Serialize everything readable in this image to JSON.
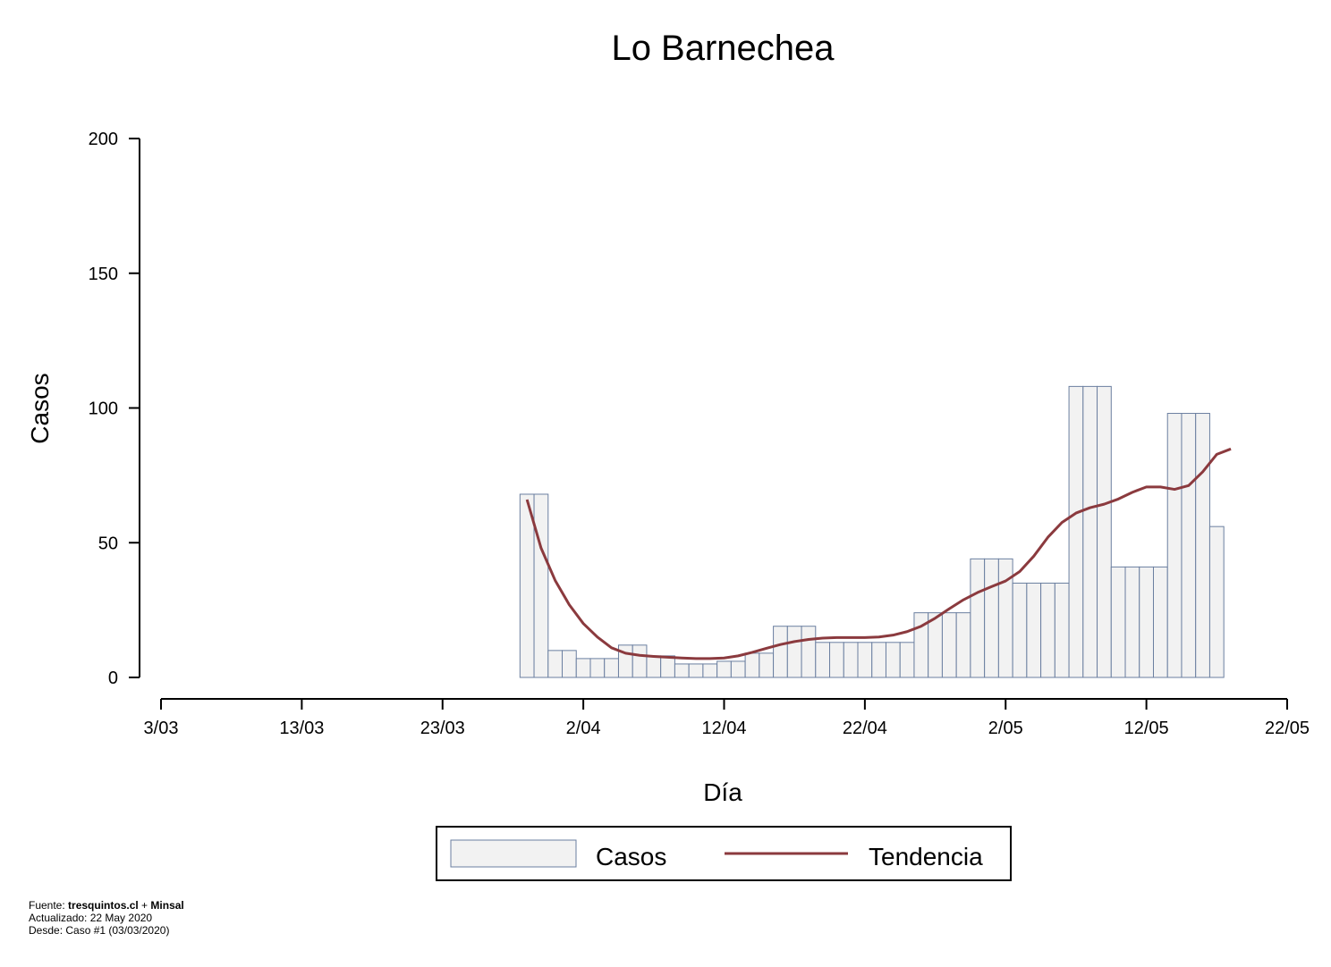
{
  "chart_data": {
    "type": "bar",
    "title": "Lo Barnechea",
    "xlabel": "Día",
    "ylabel": "Casos",
    "ylim": [
      0,
      200
    ],
    "y_ticks": [
      0,
      50,
      100,
      150,
      200
    ],
    "x_ticks": [
      "3/03",
      "13/03",
      "23/03",
      "2/04",
      "12/04",
      "22/04",
      "2/05",
      "12/05",
      "22/05"
    ],
    "x_range_days": [
      0,
      80
    ],
    "grid": false,
    "legend_position": "bottom",
    "series": [
      {
        "name": "Casos",
        "kind": "bar",
        "color": "#f2f2f2",
        "edge_color": "#6b7fa0",
        "points": [
          {
            "x": "29/03",
            "y": 68
          },
          {
            "x": "30/03",
            "y": 68
          },
          {
            "x": "31/03",
            "y": 10
          },
          {
            "x": "1/04",
            "y": 10
          },
          {
            "x": "2/04",
            "y": 7
          },
          {
            "x": "3/04",
            "y": 7
          },
          {
            "x": "4/04",
            "y": 7
          },
          {
            "x": "5/04",
            "y": 12
          },
          {
            "x": "6/04",
            "y": 12
          },
          {
            "x": "7/04",
            "y": 8
          },
          {
            "x": "8/04",
            "y": 8
          },
          {
            "x": "9/04",
            "y": 5
          },
          {
            "x": "10/04",
            "y": 5
          },
          {
            "x": "11/04",
            "y": 5
          },
          {
            "x": "12/04",
            "y": 6
          },
          {
            "x": "13/04",
            "y": 6
          },
          {
            "x": "14/04",
            "y": 9
          },
          {
            "x": "15/04",
            "y": 9
          },
          {
            "x": "16/04",
            "y": 19
          },
          {
            "x": "17/04",
            "y": 19
          },
          {
            "x": "18/04",
            "y": 19
          },
          {
            "x": "19/04",
            "y": 13
          },
          {
            "x": "20/04",
            "y": 13
          },
          {
            "x": "21/04",
            "y": 13
          },
          {
            "x": "22/04",
            "y": 13
          },
          {
            "x": "23/04",
            "y": 13
          },
          {
            "x": "24/04",
            "y": 13
          },
          {
            "x": "25/04",
            "y": 13
          },
          {
            "x": "26/04",
            "y": 24
          },
          {
            "x": "27/04",
            "y": 24
          },
          {
            "x": "28/04",
            "y": 24
          },
          {
            "x": "29/04",
            "y": 24
          },
          {
            "x": "30/04",
            "y": 44
          },
          {
            "x": "1/05",
            "y": 44
          },
          {
            "x": "2/05",
            "y": 44
          },
          {
            "x": "3/05",
            "y": 35
          },
          {
            "x": "4/05",
            "y": 35
          },
          {
            "x": "5/05",
            "y": 35
          },
          {
            "x": "6/05",
            "y": 35
          },
          {
            "x": "7/05",
            "y": 108
          },
          {
            "x": "8/05",
            "y": 108
          },
          {
            "x": "9/05",
            "y": 108
          },
          {
            "x": "10/05",
            "y": 41
          },
          {
            "x": "11/05",
            "y": 41
          },
          {
            "x": "12/05",
            "y": 41
          },
          {
            "x": "13/05",
            "y": 41
          },
          {
            "x": "14/05",
            "y": 98
          },
          {
            "x": "15/05",
            "y": 98
          },
          {
            "x": "16/05",
            "y": 98
          },
          {
            "x": "17/05",
            "y": 56
          }
        ]
      },
      {
        "name": "Tendencia",
        "kind": "line",
        "color": "#8b3a3e",
        "points": [
          {
            "x": "29/03",
            "y": 66
          },
          {
            "x": "30/03",
            "y": 48
          },
          {
            "x": "31/03",
            "y": 36
          },
          {
            "x": "1/04",
            "y": 27
          },
          {
            "x": "2/04",
            "y": 20
          },
          {
            "x": "3/04",
            "y": 15
          },
          {
            "x": "4/04",
            "y": 11
          },
          {
            "x": "5/04",
            "y": 9
          },
          {
            "x": "6/04",
            "y": 8.2
          },
          {
            "x": "7/04",
            "y": 7.8
          },
          {
            "x": "8/04",
            "y": 7.5
          },
          {
            "x": "9/04",
            "y": 7.2
          },
          {
            "x": "10/04",
            "y": 7
          },
          {
            "x": "11/04",
            "y": 7
          },
          {
            "x": "12/04",
            "y": 7.2
          },
          {
            "x": "13/04",
            "y": 8
          },
          {
            "x": "14/04",
            "y": 9.3
          },
          {
            "x": "15/04",
            "y": 10.8
          },
          {
            "x": "16/04",
            "y": 12.2
          },
          {
            "x": "17/04",
            "y": 13.3
          },
          {
            "x": "18/04",
            "y": 14.1
          },
          {
            "x": "19/04",
            "y": 14.6
          },
          {
            "x": "20/04",
            "y": 14.8
          },
          {
            "x": "21/04",
            "y": 14.8
          },
          {
            "x": "22/04",
            "y": 14.8
          },
          {
            "x": "23/04",
            "y": 15
          },
          {
            "x": "24/04",
            "y": 15.7
          },
          {
            "x": "25/04",
            "y": 17
          },
          {
            "x": "26/04",
            "y": 19
          },
          {
            "x": "27/04",
            "y": 22
          },
          {
            "x": "28/04",
            "y": 25.5
          },
          {
            "x": "29/04",
            "y": 28.8
          },
          {
            "x": "30/04",
            "y": 31.5
          },
          {
            "x": "1/05",
            "y": 33.7
          },
          {
            "x": "2/05",
            "y": 35.8
          },
          {
            "x": "3/05",
            "y": 39.3
          },
          {
            "x": "4/05",
            "y": 45
          },
          {
            "x": "5/05",
            "y": 52
          },
          {
            "x": "6/05",
            "y": 57.5
          },
          {
            "x": "7/05",
            "y": 61
          },
          {
            "x": "8/05",
            "y": 63
          },
          {
            "x": "9/05",
            "y": 64.3
          },
          {
            "x": "10/05",
            "y": 66.2
          },
          {
            "x": "11/05",
            "y": 68.7
          },
          {
            "x": "12/05",
            "y": 70.7
          },
          {
            "x": "13/05",
            "y": 70.7
          },
          {
            "x": "14/05",
            "y": 69.8
          },
          {
            "x": "15/05",
            "y": 71.2
          },
          {
            "x": "16/05",
            "y": 76.3
          },
          {
            "x": "17/05",
            "y": 82.8
          },
          {
            "x": "18/05",
            "y": 84.8
          }
        ]
      }
    ]
  },
  "footer": {
    "source_prefix": "Fuente: ",
    "source_a": "tresquintos.cl",
    "source_join": " + ",
    "source_b": "Minsal",
    "updated": "Actualizado: 22 May 2020",
    "since": "Desde: Caso #1  (03/03/2020)"
  }
}
